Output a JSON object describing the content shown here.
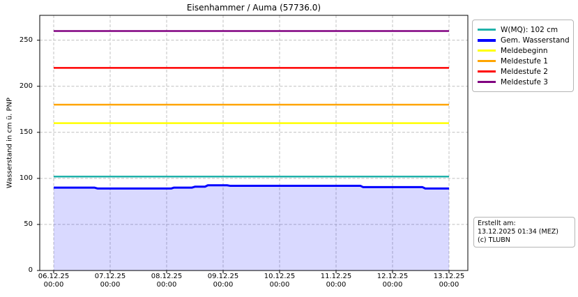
{
  "chart_data": {
    "type": "line",
    "title": "Eisenhammer / Auma (57736.0)",
    "ylabel": "Wasserstand in cm ü. PNP",
    "xlabel": "",
    "ylim": [
      0,
      277
    ],
    "yticks": [
      0,
      50,
      100,
      150,
      200,
      250
    ],
    "x_range_days": [
      0,
      7
    ],
    "grid": true,
    "legend_position": "outside-right-top",
    "x_ticks": [
      {
        "date": "06.12.25",
        "time": "00:00",
        "day": 0
      },
      {
        "date": "07.12.25",
        "time": "00:00",
        "day": 1
      },
      {
        "date": "08.12.25",
        "time": "00:00",
        "day": 2
      },
      {
        "date": "09.12.25",
        "time": "00:00",
        "day": 3
      },
      {
        "date": "10.12.25",
        "time": "00:00",
        "day": 4
      },
      {
        "date": "11.12.25",
        "time": "00:00",
        "day": 5
      },
      {
        "date": "12.12.25",
        "time": "00:00",
        "day": 6
      },
      {
        "date": "13.12.25",
        "time": "00:00",
        "day": 7
      }
    ],
    "series": [
      {
        "name": "W(MQ): 102 cm",
        "type": "hline",
        "value": 102,
        "color": "#20b2aa",
        "width": 2.5
      },
      {
        "name": "Gem. Wasserstand",
        "type": "steps",
        "color": "#0000ff",
        "width": 3,
        "fill_color": "#0000ff",
        "fill_opacity": 0.15,
        "points": [
          [
            0,
            90
          ],
          [
            0.72,
            90
          ],
          [
            0.78,
            89
          ],
          [
            2.08,
            89
          ],
          [
            2.13,
            90
          ],
          [
            2.45,
            90
          ],
          [
            2.5,
            91
          ],
          [
            2.68,
            91
          ],
          [
            2.73,
            92.5
          ],
          [
            3.07,
            92.5
          ],
          [
            3.12,
            92
          ],
          [
            5.43,
            92
          ],
          [
            5.48,
            90.5
          ],
          [
            6.53,
            90.5
          ],
          [
            6.58,
            89
          ],
          [
            7,
            89
          ]
        ]
      },
      {
        "name": "Meldebeginn",
        "type": "hline",
        "value": 160,
        "color": "#ffff00",
        "width": 2.5
      },
      {
        "name": "Meldestufe 1",
        "type": "hline",
        "value": 180,
        "color": "#ffa500",
        "width": 2.5
      },
      {
        "name": "Meldestufe 2",
        "type": "hline",
        "value": 220,
        "color": "#ff0000",
        "width": 2.5
      },
      {
        "name": "Meldestufe 3",
        "type": "hline",
        "value": 260,
        "color": "#800080",
        "width": 2.5
      }
    ]
  },
  "info_box": {
    "lines": [
      "Erstellt am:",
      "13.12.2025 01:34 (MEZ)",
      "(c) TLUBN"
    ]
  },
  "colors": {
    "grid": "#c0c0c0",
    "axis": "#000000",
    "background": "#ffffff"
  }
}
